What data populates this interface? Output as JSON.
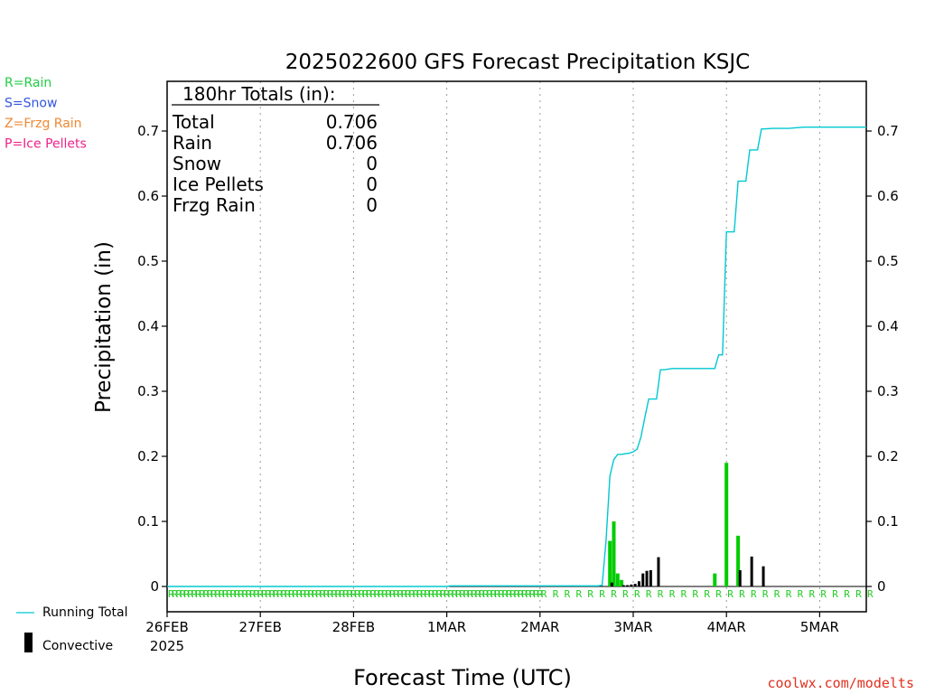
{
  "chart_data": {
    "type": "bar",
    "title": "2025022600 GFS Forecast Precipitation KSJC",
    "xlabel": "Forecast Time (UTC)",
    "ylabel": "Precipitation (in)",
    "ylim": [
      0,
      0.78
    ],
    "yticks": [
      0,
      0.1,
      0.2,
      0.3,
      0.4,
      0.5,
      0.6,
      0.7
    ],
    "ytick_labels": [
      "0",
      "0.1",
      "0.2",
      "0.3",
      "0.4",
      "0.5",
      "0.6",
      "0.7"
    ],
    "x_unit": "hours since 2025-02-26 00 UTC",
    "xlim": [
      0,
      180
    ],
    "x_ticks": [
      {
        "hour": 0,
        "label": "26FEB",
        "sublabel": "2025"
      },
      {
        "hour": 24,
        "label": "27FEB"
      },
      {
        "hour": 48,
        "label": "28FEB"
      },
      {
        "hour": 72,
        "label": "1MAR"
      },
      {
        "hour": 96,
        "label": "2MAR"
      },
      {
        "hour": 120,
        "label": "3MAR"
      },
      {
        "hour": 144,
        "label": "4MAR"
      },
      {
        "hour": 168,
        "label": "5MAR"
      }
    ],
    "grid": "vertical dotted at day boundaries",
    "series": [
      {
        "name": "Rain",
        "color": "#00cc00",
        "bars": [
          {
            "x": 114,
            "y": 0.07
          },
          {
            "x": 115,
            "y": 0.1
          },
          {
            "x": 116,
            "y": 0.02
          },
          {
            "x": 117,
            "y": 0.01
          },
          {
            "x": 141,
            "y": 0.02
          },
          {
            "x": 144,
            "y": 0.19
          },
          {
            "x": 147,
            "y": 0.078
          }
        ]
      },
      {
        "name": "Convective",
        "color": "#000000",
        "bars": [
          {
            "x": 114.5,
            "y": 0.006
          },
          {
            "x": 117.5,
            "y": 0.002
          },
          {
            "x": 118.5,
            "y": 0.002
          },
          {
            "x": 119.5,
            "y": 0.003
          },
          {
            "x": 120.5,
            "y": 0.004
          },
          {
            "x": 121.5,
            "y": 0.008
          },
          {
            "x": 122.5,
            "y": 0.02
          },
          {
            "x": 123.5,
            "y": 0.024
          },
          {
            "x": 124.5,
            "y": 0.025
          },
          {
            "x": 126.5,
            "y": 0.045
          },
          {
            "x": 147.5,
            "y": 0.025
          },
          {
            "x": 150.5,
            "y": 0.046
          },
          {
            "x": 153.5,
            "y": 0.031
          }
        ]
      },
      {
        "name": "Running Total",
        "color": "#00c8d2",
        "type": "line",
        "points": [
          [
            0,
            0
          ],
          [
            72,
            0
          ],
          [
            73,
            0.001
          ],
          [
            110,
            0.001
          ],
          [
            111,
            0.001
          ],
          [
            112,
            0.002
          ],
          [
            113,
            0.07
          ],
          [
            114,
            0.17
          ],
          [
            115,
            0.195
          ],
          [
            116,
            0.203
          ],
          [
            117,
            0.203
          ],
          [
            118,
            0.204
          ],
          [
            119,
            0.205
          ],
          [
            120,
            0.207
          ],
          [
            121,
            0.211
          ],
          [
            122,
            0.23
          ],
          [
            123,
            0.26
          ],
          [
            124,
            0.288
          ],
          [
            126,
            0.288
          ],
          [
            127,
            0.333
          ],
          [
            128,
            0.333
          ],
          [
            130,
            0.335
          ],
          [
            140,
            0.335
          ],
          [
            141,
            0.335
          ],
          [
            142,
            0.356
          ],
          [
            143,
            0.356
          ],
          [
            144,
            0.545
          ],
          [
            146,
            0.545
          ],
          [
            147,
            0.623
          ],
          [
            149,
            0.623
          ],
          [
            150,
            0.671
          ],
          [
            152,
            0.671
          ],
          [
            153,
            0.703
          ],
          [
            156,
            0.704
          ],
          [
            160,
            0.704
          ],
          [
            164,
            0.706
          ],
          [
            180,
            0.706
          ]
        ]
      }
    ],
    "precip_type_flags": {
      "label": "R",
      "dense_hours": [
        0,
        96
      ],
      "dense_step": 1,
      "sparse_hours": [
        96,
        180
      ],
      "sparse_step": 3
    },
    "totals_box": {
      "header": "180hr Totals (in):",
      "rows": [
        {
          "label": "Total",
          "value": "0.706"
        },
        {
          "label": "Rain",
          "value": "0.706"
        },
        {
          "label": "Snow",
          "value": "0"
        },
        {
          "label": "Ice Pellets",
          "value": "0"
        },
        {
          "label": "Frzg Rain",
          "value": "0"
        }
      ]
    }
  },
  "legend_top": [
    {
      "text": "R=Rain",
      "color": "#22cc44"
    },
    {
      "text": "S=Snow",
      "color": "#3355dd"
    },
    {
      "text": "Z=Frzg Rain",
      "color": "#ee8833"
    },
    {
      "text": "P=Ice Pellets",
      "color": "#ee2288"
    }
  ],
  "legend_bottom": {
    "running_total": "Running Total",
    "convective": "Convective"
  },
  "credit": "coolwx.com/modelts"
}
